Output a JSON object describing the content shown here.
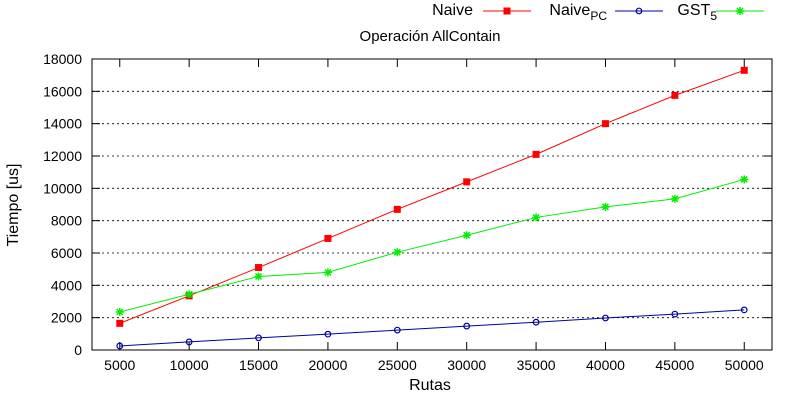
{
  "chart_data": {
    "type": "line",
    "title": "Operación AllContain",
    "xlabel": "Rutas",
    "ylabel": "Tiempo [us]",
    "x": [
      5000,
      10000,
      15000,
      20000,
      25000,
      30000,
      35000,
      40000,
      45000,
      50000
    ],
    "xlim": [
      3000,
      52000
    ],
    "ylim": [
      0,
      18000
    ],
    "yticks": [
      0,
      2000,
      4000,
      6000,
      8000,
      10000,
      12000,
      14000,
      16000,
      18000
    ],
    "grid": "horizontal dashed",
    "legend_position": "top-right",
    "series": [
      {
        "name": "Naive",
        "name_sub": "",
        "color": "#ff0000",
        "marker": "filled-square",
        "values": [
          1650,
          3350,
          5100,
          6900,
          8700,
          10400,
          12100,
          14000,
          15750,
          17300
        ]
      },
      {
        "name": "Naive",
        "name_sub": "PC",
        "color": "#0000a0",
        "marker": "open-circle",
        "values": [
          250,
          500,
          750,
          980,
          1230,
          1480,
          1720,
          1980,
          2220,
          2480
        ]
      },
      {
        "name": "GST",
        "name_sub": "5",
        "color": "#00ee00",
        "marker": "star",
        "values": [
          2350,
          3450,
          4550,
          4800,
          6050,
          7100,
          8200,
          8850,
          9350,
          10550
        ]
      }
    ]
  }
}
